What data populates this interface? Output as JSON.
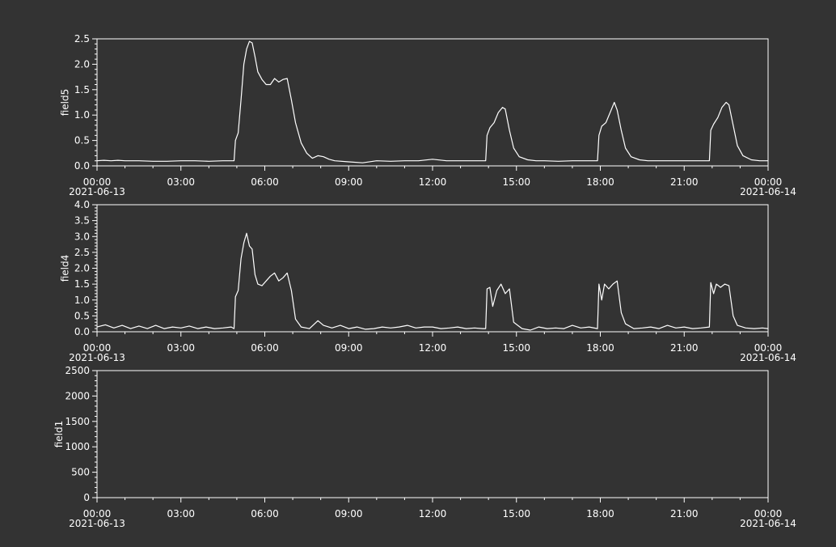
{
  "theme": {
    "background": "#333333",
    "foreground": "#ffffff"
  },
  "x_axis": {
    "ticks": [
      "00:00",
      "03:00",
      "06:00",
      "09:00",
      "12:00",
      "15:00",
      "18:00",
      "21:00",
      "00:00"
    ],
    "tick_hours": [
      0,
      3,
      6,
      9,
      12,
      15,
      18,
      21,
      24
    ],
    "start_date": "2021-06-13",
    "end_date": "2021-06-14",
    "range_hours": [
      0,
      24
    ]
  },
  "chart_data": [
    {
      "type": "line",
      "ylabel": "field5",
      "ylim": [
        0,
        2.5
      ],
      "yticks": [
        "0.0",
        "0.5",
        "1.0",
        "1.5",
        "2.0",
        "2.5"
      ],
      "ytick_values": [
        0,
        0.5,
        1,
        1.5,
        2,
        2.5
      ],
      "series": [
        {
          "x": [
            0,
            0.25,
            0.5,
            0.75,
            1,
            1.5,
            2,
            2.5,
            3,
            3.5,
            4,
            4.5,
            4.9,
            4.95,
            5.05,
            5.15,
            5.25,
            5.35,
            5.45,
            5.55,
            5.65,
            5.75,
            5.9,
            6.05,
            6.2,
            6.35,
            6.5,
            6.65,
            6.8,
            6.95,
            7.1,
            7.3,
            7.5,
            7.7,
            7.9,
            8.1,
            8.3,
            8.5,
            9,
            9.5,
            10,
            10.5,
            11,
            11.5,
            12,
            12.5,
            13,
            13.5,
            13.9,
            13.95,
            14.05,
            14.2,
            14.35,
            14.5,
            14.6,
            14.75,
            14.9,
            15.1,
            15.4,
            15.7,
            16,
            16.5,
            17,
            17.5,
            17.9,
            17.95,
            18.05,
            18.2,
            18.35,
            18.5,
            18.6,
            18.75,
            18.9,
            19.1,
            19.4,
            19.7,
            20,
            20.5,
            21,
            21.5,
            21.9,
            21.95,
            22.05,
            22.2,
            22.35,
            22.5,
            22.6,
            22.75,
            22.9,
            23.1,
            23.4,
            23.7,
            24
          ],
          "y": [
            0.1,
            0.11,
            0.1,
            0.11,
            0.1,
            0.1,
            0.09,
            0.09,
            0.1,
            0.1,
            0.09,
            0.1,
            0.1,
            0.5,
            0.65,
            1.3,
            2.0,
            2.3,
            2.45,
            2.42,
            2.15,
            1.85,
            1.7,
            1.6,
            1.6,
            1.72,
            1.65,
            1.7,
            1.72,
            1.3,
            0.85,
            0.45,
            0.25,
            0.15,
            0.2,
            0.18,
            0.13,
            0.1,
            0.08,
            0.06,
            0.1,
            0.09,
            0.1,
            0.1,
            0.13,
            0.1,
            0.1,
            0.1,
            0.1,
            0.6,
            0.75,
            0.85,
            1.05,
            1.15,
            1.12,
            0.7,
            0.35,
            0.18,
            0.12,
            0.1,
            0.1,
            0.09,
            0.1,
            0.1,
            0.1,
            0.6,
            0.78,
            0.85,
            1.05,
            1.25,
            1.1,
            0.7,
            0.35,
            0.18,
            0.12,
            0.1,
            0.1,
            0.1,
            0.1,
            0.1,
            0.1,
            0.7,
            0.82,
            0.95,
            1.15,
            1.25,
            1.2,
            0.8,
            0.4,
            0.2,
            0.12,
            0.1,
            0.1
          ]
        }
      ]
    },
    {
      "type": "line",
      "ylabel": "field4",
      "ylim": [
        0,
        4.0
      ],
      "yticks": [
        "0.0",
        "0.5",
        "1.0",
        "1.5",
        "2.0",
        "2.5",
        "3.0",
        "3.5",
        "4.0"
      ],
      "ytick_values": [
        0,
        0.5,
        1,
        1.5,
        2,
        2.5,
        3,
        3.5,
        4
      ],
      "series": [
        {
          "x": [
            0,
            0.3,
            0.6,
            0.9,
            1.2,
            1.5,
            1.8,
            2.1,
            2.4,
            2.7,
            3,
            3.3,
            3.6,
            3.9,
            4.2,
            4.5,
            4.8,
            4.9,
            4.95,
            5.05,
            5.15,
            5.25,
            5.35,
            5.45,
            5.55,
            5.65,
            5.75,
            5.9,
            6.05,
            6.2,
            6.35,
            6.5,
            6.65,
            6.8,
            6.95,
            7.1,
            7.3,
            7.6,
            7.9,
            8.1,
            8.4,
            8.7,
            9,
            9.3,
            9.6,
            9.9,
            10.2,
            10.5,
            10.8,
            11.1,
            11.4,
            11.7,
            12,
            12.3,
            12.6,
            12.9,
            13.2,
            13.5,
            13.8,
            13.9,
            13.95,
            14.05,
            14.15,
            14.3,
            14.45,
            14.6,
            14.75,
            14.9,
            15.2,
            15.5,
            15.8,
            16.1,
            16.4,
            16.7,
            17,
            17.3,
            17.6,
            17.9,
            17.95,
            18.05,
            18.15,
            18.3,
            18.45,
            18.6,
            18.75,
            18.9,
            19.2,
            19.5,
            19.8,
            20.1,
            20.4,
            20.7,
            21,
            21.3,
            21.6,
            21.9,
            21.95,
            22.05,
            22.15,
            22.3,
            22.45,
            22.6,
            22.75,
            22.9,
            23.2,
            23.5,
            23.8,
            24
          ],
          "y": [
            0.15,
            0.22,
            0.12,
            0.2,
            0.1,
            0.18,
            0.1,
            0.2,
            0.1,
            0.15,
            0.12,
            0.18,
            0.1,
            0.15,
            0.1,
            0.12,
            0.15,
            0.1,
            1.1,
            1.3,
            2.3,
            2.8,
            3.1,
            2.7,
            2.6,
            1.8,
            1.5,
            1.45,
            1.6,
            1.75,
            1.85,
            1.6,
            1.7,
            1.85,
            1.3,
            0.4,
            0.15,
            0.1,
            0.35,
            0.2,
            0.12,
            0.2,
            0.1,
            0.15,
            0.08,
            0.1,
            0.15,
            0.12,
            0.15,
            0.2,
            0.12,
            0.15,
            0.15,
            0.1,
            0.12,
            0.15,
            0.1,
            0.12,
            0.1,
            0.1,
            1.35,
            1.4,
            0.8,
            1.3,
            1.5,
            1.2,
            1.35,
            0.3,
            0.1,
            0.05,
            0.15,
            0.1,
            0.12,
            0.1,
            0.2,
            0.12,
            0.15,
            0.1,
            1.5,
            1.0,
            1.5,
            1.35,
            1.5,
            1.6,
            0.6,
            0.25,
            0.1,
            0.12,
            0.15,
            0.1,
            0.2,
            0.12,
            0.15,
            0.1,
            0.12,
            0.15,
            1.55,
            1.2,
            1.5,
            1.4,
            1.5,
            1.45,
            0.5,
            0.2,
            0.12,
            0.1,
            0.12,
            0.1
          ]
        }
      ]
    },
    {
      "type": "line",
      "ylabel": "field1",
      "ylim": [
        0,
        2500
      ],
      "yticks": [
        "0",
        "500",
        "1000",
        "1500",
        "2000",
        "2500"
      ],
      "ytick_values": [
        0,
        500,
        1000,
        1500,
        2000,
        2500
      ],
      "series": [
        {
          "x": [],
          "y": []
        }
      ]
    }
  ]
}
